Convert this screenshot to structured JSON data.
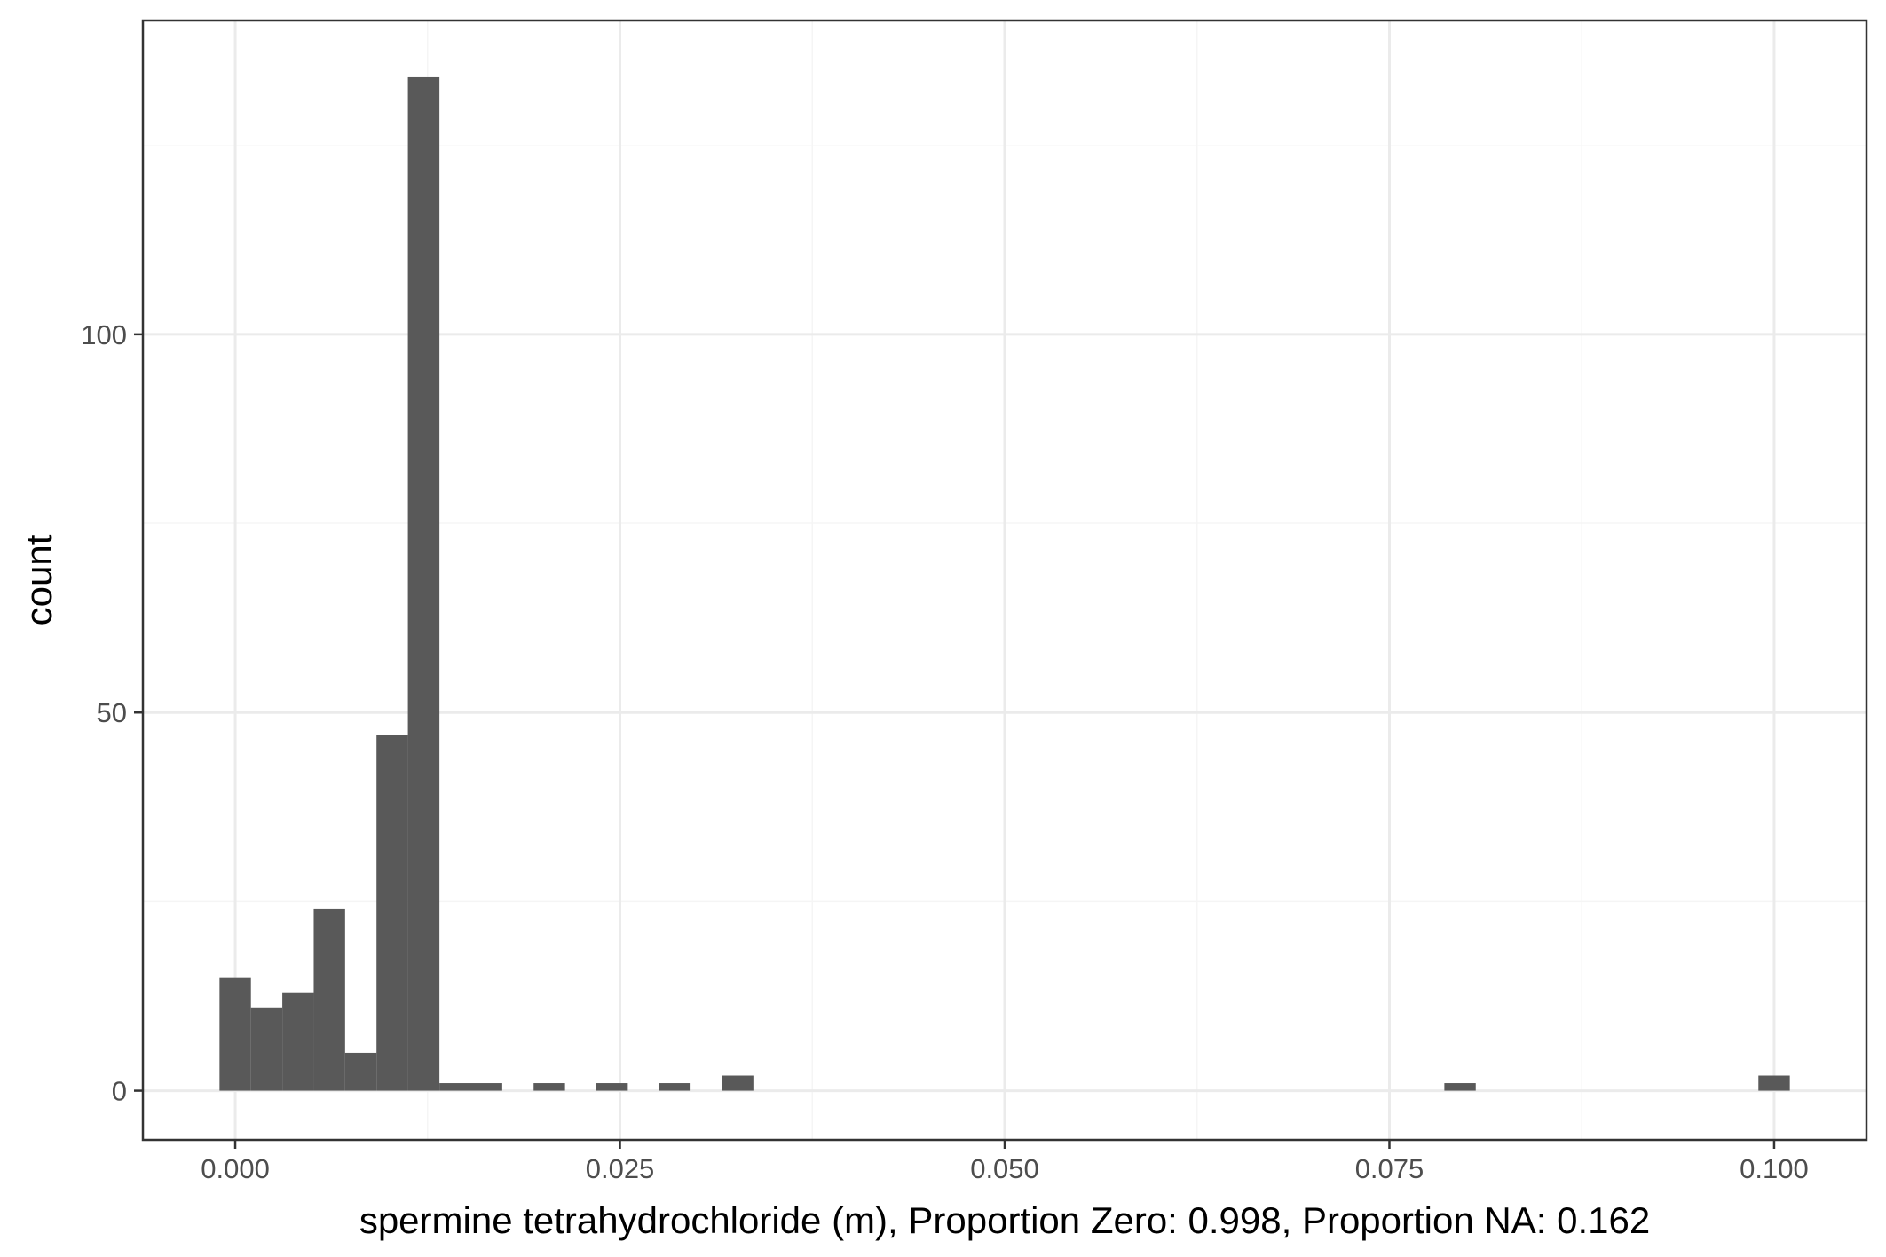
{
  "chart_data": {
    "type": "bar",
    "subtype": "histogram",
    "title": "",
    "xlabel": "spermine tetrahydrochloride (m), Proportion Zero: 0.998, Proportion NA: 0.162",
    "ylabel": "count",
    "xlim": [
      -0.006,
      0.106
    ],
    "ylim": [
      -6.5,
      141.5
    ],
    "x_ticks": [
      {
        "value": 0.0,
        "label": "0.000"
      },
      {
        "value": 0.025,
        "label": "0.025"
      },
      {
        "value": 0.05,
        "label": "0.050"
      },
      {
        "value": 0.075,
        "label": "0.075"
      },
      {
        "value": 0.1,
        "label": "0.100"
      }
    ],
    "x_minor_breaks": [
      0.0125,
      0.0375,
      0.0625,
      0.0875
    ],
    "y_ticks": [
      {
        "value": 0,
        "label": "0"
      },
      {
        "value": 50,
        "label": "50"
      },
      {
        "value": 100,
        "label": "100"
      }
    ],
    "y_minor_breaks": [
      25,
      75,
      125
    ],
    "bin_width": 0.00204,
    "bins": [
      {
        "x0": -0.00102,
        "x1": 0.00102,
        "count": 15
      },
      {
        "x0": 0.00102,
        "x1": 0.00306,
        "count": 11
      },
      {
        "x0": 0.00306,
        "x1": 0.0051,
        "count": 13
      },
      {
        "x0": 0.0051,
        "x1": 0.00714,
        "count": 24
      },
      {
        "x0": 0.00714,
        "x1": 0.00918,
        "count": 5
      },
      {
        "x0": 0.00918,
        "x1": 0.01122,
        "count": 47
      },
      {
        "x0": 0.01122,
        "x1": 0.01327,
        "count": 134
      },
      {
        "x0": 0.01327,
        "x1": 0.01531,
        "count": 1
      },
      {
        "x0": 0.01531,
        "x1": 0.01735,
        "count": 1
      },
      {
        "x0": 0.01939,
        "x1": 0.02143,
        "count": 1
      },
      {
        "x0": 0.02347,
        "x1": 0.02551,
        "count": 1
      },
      {
        "x0": 0.02755,
        "x1": 0.02959,
        "count": 1
      },
      {
        "x0": 0.03163,
        "x1": 0.03367,
        "count": 2
      },
      {
        "x0": 0.07857,
        "x1": 0.08061,
        "count": 1
      },
      {
        "x0": 0.09898,
        "x1": 0.10102,
        "count": 2
      }
    ],
    "grid": true,
    "legend": "none",
    "colors": {
      "bar": "#595959",
      "grid_major": "#ebebeb",
      "grid_minor": "#f5f5f5",
      "panel_border": "#333333",
      "tick_text": "#4d4d4d"
    }
  }
}
